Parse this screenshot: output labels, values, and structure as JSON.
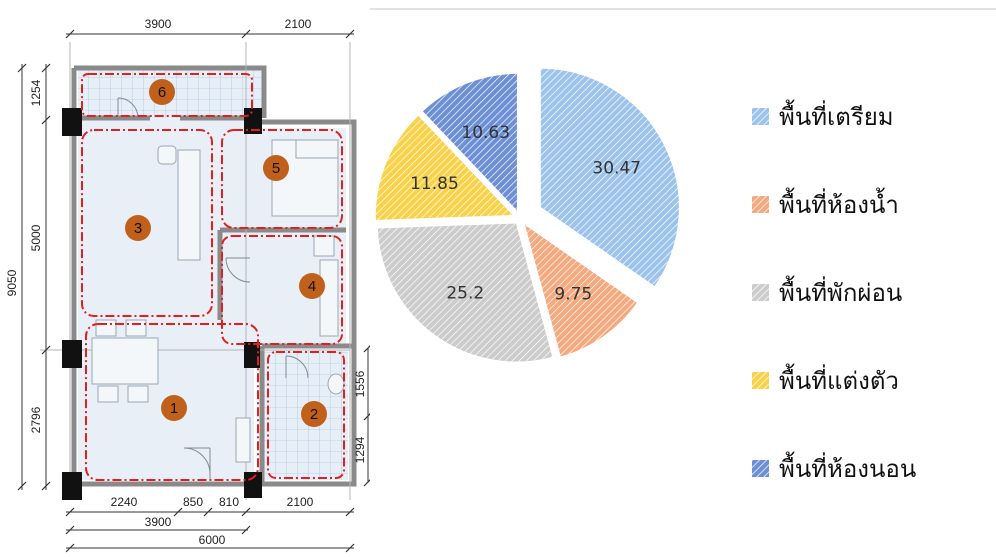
{
  "floor_plan": {
    "dimensions": {
      "top_left": "3900",
      "top_right": "2100",
      "left_overall": "9050",
      "left_top": "1254",
      "left_middle": "5000",
      "left_bottom": "2796",
      "right_upper": "1556",
      "right_lower": "1294",
      "bottom_a": "2240",
      "bottom_b": "850",
      "bottom_c": "810",
      "bottom_d": "2100",
      "bottom_mid": "3900",
      "bottom_overall": "6000"
    },
    "zones": [
      "1",
      "2",
      "3",
      "4",
      "5",
      "6"
    ]
  },
  "chart_data": {
    "type": "pie",
    "slices": [
      {
        "label": "พื้นที่เตรียม",
        "value": 30.47,
        "color": "#9cc3ec"
      },
      {
        "label": "พื้นที่ห้องน้ำ",
        "value": 9.75,
        "color": "#f4a97e"
      },
      {
        "label": "พื้นที่พักผ่อน",
        "value": 25.2,
        "color": "#cccccc"
      },
      {
        "label": "พื้นที่แต่งตัว",
        "value": 11.85,
        "color": "#f9d24a"
      },
      {
        "label": "พื้นที่ห้องนอน",
        "value": 10.63,
        "color": "#6c8fd6"
      }
    ],
    "legend_position": "right",
    "exploded": true
  }
}
